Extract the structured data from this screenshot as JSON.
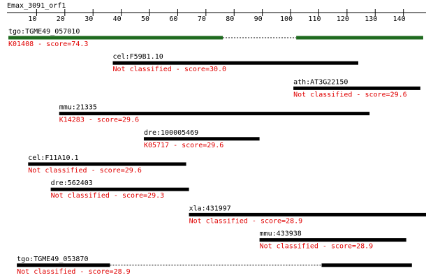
{
  "ruler": {
    "title": "Emax_3091_orf1",
    "xlim": [
      0,
      148
    ],
    "xticks": [
      10,
      20,
      30,
      40,
      50,
      60,
      70,
      80,
      90,
      100,
      110,
      120,
      130,
      140
    ]
  },
  "hits": [
    {
      "name": "tgo:TGME49_057010",
      "label": "K01408 - score=74.3",
      "color": "#1f6b1f",
      "segments": [
        [
          0,
          76
        ],
        [
          102,
          147
        ]
      ]
    },
    {
      "name": "cel:F59B1.10",
      "label": "Not classified - score=30.0",
      "color": "#000000",
      "segments": [
        [
          37,
          124
        ]
      ]
    },
    {
      "name": "ath:AT3G22150",
      "label": "Not classified - score=29.6",
      "color": "#000000",
      "segments": [
        [
          101,
          146
        ]
      ]
    },
    {
      "name": "mmu:21335",
      "label": "K14283 - score=29.6",
      "color": "#000000",
      "segments": [
        [
          18,
          128
        ]
      ]
    },
    {
      "name": "dre:100005469",
      "label": "K05717 - score=29.6",
      "color": "#000000",
      "segments": [
        [
          48,
          89
        ]
      ]
    },
    {
      "name": "cel:F11A10.1",
      "label": "Not classified - score=29.6",
      "color": "#000000",
      "segments": [
        [
          7,
          63
        ]
      ]
    },
    {
      "name": "dre:562403",
      "label": "Not classified - score=29.3",
      "color": "#000000",
      "segments": [
        [
          15,
          64
        ]
      ]
    },
    {
      "name": "xla:431997",
      "label": "Not classified - score=28.9",
      "color": "#000000",
      "segments": [
        [
          64,
          148
        ]
      ]
    },
    {
      "name": "mmu:433938",
      "label": "Not classified - score=28.9",
      "color": "#000000",
      "segments": [
        [
          89,
          141
        ]
      ]
    },
    {
      "name": "tgo:TGME49_053870",
      "label": "Not classified - score=28.9",
      "color": "#000000",
      "segments": [
        [
          3,
          36
        ],
        [
          111,
          143
        ]
      ]
    }
  ]
}
